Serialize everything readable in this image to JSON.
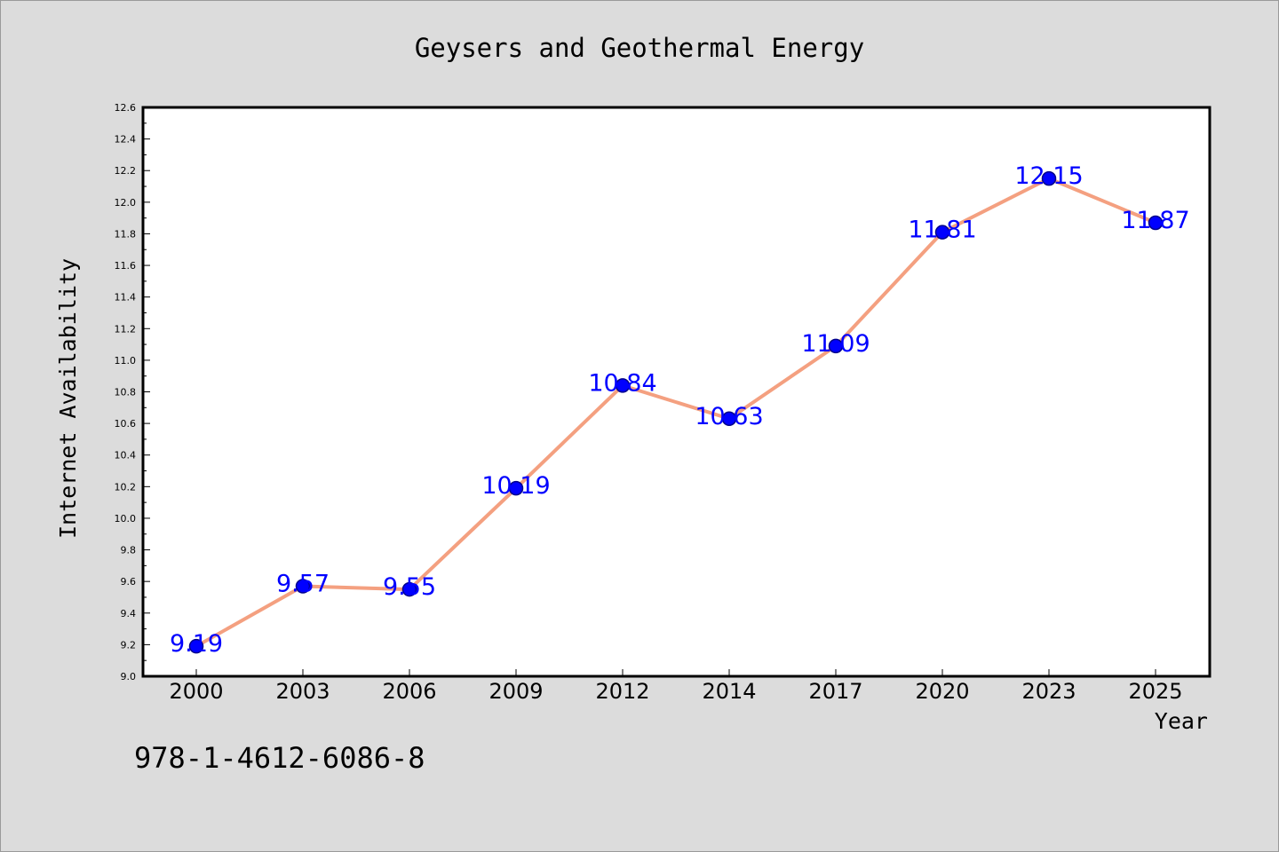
{
  "chart_data": {
    "type": "line",
    "title": "Geysers and Geothermal Energy",
    "xlabel": "Year",
    "ylabel": "Internet Availability",
    "categories": [
      "2000",
      "2003",
      "2006",
      "2009",
      "2012",
      "2014",
      "2017",
      "2020",
      "2023",
      "2025"
    ],
    "series": [
      {
        "values": [
          9.19,
          9.57,
          9.55,
          10.19,
          10.84,
          10.63,
          11.09,
          11.81,
          12.15,
          11.87
        ]
      }
    ],
    "data_labels": [
      "9.19",
      "9.57",
      "9.55",
      "10.19",
      "10.84",
      "10.63",
      "11.09",
      "11.81",
      "12.15",
      "11.87"
    ],
    "ylim": [
      9.0,
      12.6
    ],
    "y_ticks": [
      "9.0",
      "9.2",
      "9.4",
      "9.6",
      "9.8",
      "10.0",
      "10.2",
      "10.4",
      "10.6",
      "10.8",
      "11.0",
      "11.2",
      "11.4",
      "11.6",
      "11.8",
      "12.0",
      "12.2",
      "12.4",
      "12.6"
    ],
    "grid": false,
    "legend": "none",
    "colors": {
      "line": "#f4a080",
      "marker_fill": "#0000ff",
      "marker_edge": "#00008b",
      "data_label": "#0000ff",
      "plot_background": "#ffffff",
      "figure_background": "#dcdcdc"
    }
  },
  "footer": {
    "isbn": "978-1-4612-6086-8"
  }
}
